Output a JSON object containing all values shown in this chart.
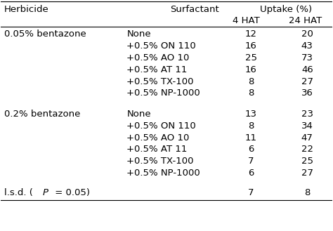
{
  "col_headers": [
    "Herbicide",
    "Surfactant",
    "4 HAT",
    "24 HAT"
  ],
  "uptake_header": "Uptake (%)",
  "rows": [
    {
      "herbicide": "0.05% bentazone",
      "surfactant": "None",
      "hat4": "12",
      "hat24": "20"
    },
    {
      "herbicide": "",
      "surfactant": "+0.5% ON 110",
      "hat4": "16",
      "hat24": "43"
    },
    {
      "herbicide": "",
      "surfactant": "+0.5% AO 10",
      "hat4": "25",
      "hat24": "73"
    },
    {
      "herbicide": "",
      "surfactant": "+0.5% AT 11",
      "hat4": "16",
      "hat24": "46"
    },
    {
      "herbicide": "",
      "surfactant": "+0.5% TX-100",
      "hat4": "8",
      "hat24": "27"
    },
    {
      "herbicide": "",
      "surfactant": "+0.5% NP-1000",
      "hat4": "8",
      "hat24": "36"
    },
    {
      "herbicide": "0.2% bentazone",
      "surfactant": "None",
      "hat4": "13",
      "hat24": "23"
    },
    {
      "herbicide": "",
      "surfactant": "+0.5% ON 110",
      "hat4": "8",
      "hat24": "34"
    },
    {
      "herbicide": "",
      "surfactant": "+0.5% AO 10",
      "hat4": "11",
      "hat24": "47"
    },
    {
      "herbicide": "",
      "surfactant": "+0.5% AT 11",
      "hat4": "6",
      "hat24": "22"
    },
    {
      "herbicide": "",
      "surfactant": "+0.5% TX-100",
      "hat4": "7",
      "hat24": "25"
    },
    {
      "herbicide": "",
      "surfactant": "+0.5% NP-1000",
      "hat4": "6",
      "hat24": "27"
    },
    {
      "herbicide": "l.s.d. (P = 0.05)",
      "surfactant": "",
      "hat4": "7",
      "hat24": "8"
    }
  ],
  "font_size": 9.5,
  "header_font_size": 9.5,
  "bg_color": "#ffffff",
  "text_color": "#000000",
  "line_color": "#000000"
}
